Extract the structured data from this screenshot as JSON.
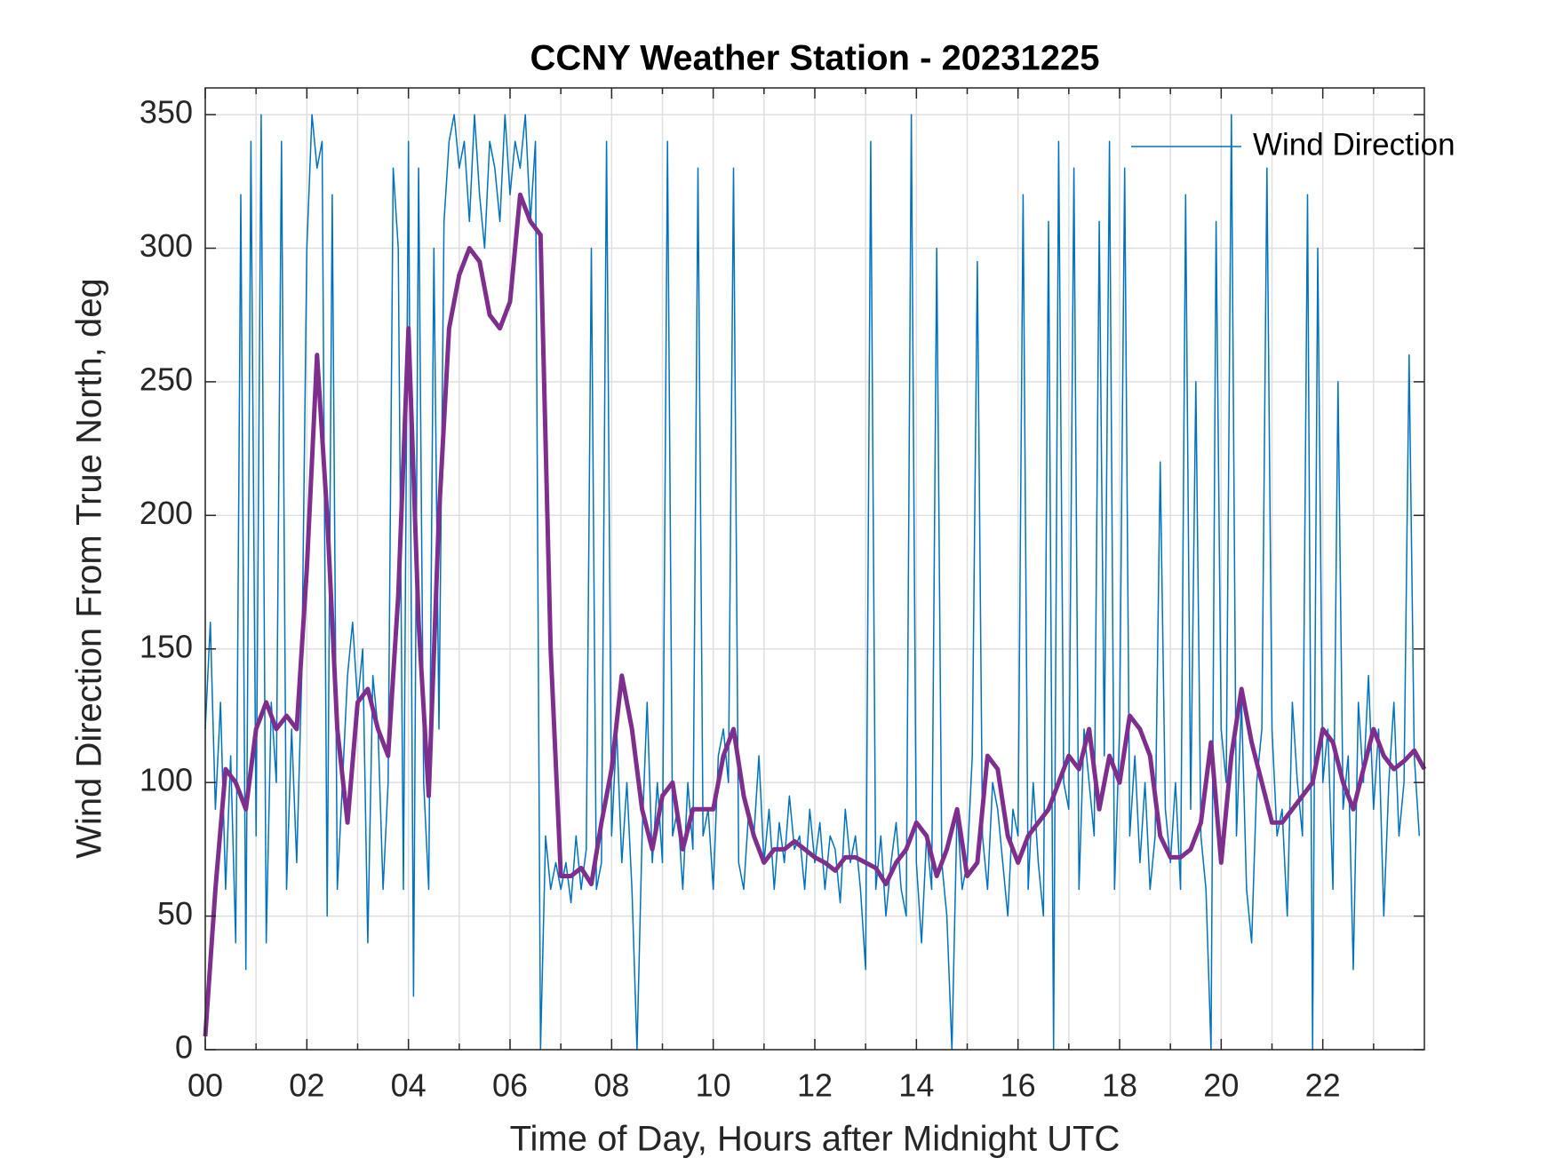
{
  "chart_data": {
    "type": "line",
    "title": "CCNY Weather Station - 20231225",
    "xlabel": "Time of Day, Hours after Midnight UTC",
    "ylabel": "Wind Direction From True North, deg",
    "xlim": [
      0,
      24
    ],
    "ylim": [
      0,
      360
    ],
    "xticks": [
      {
        "value": 0,
        "label": "00"
      },
      {
        "value": 2,
        "label": "02"
      },
      {
        "value": 4,
        "label": "04"
      },
      {
        "value": 6,
        "label": "06"
      },
      {
        "value": 8,
        "label": "08"
      },
      {
        "value": 10,
        "label": "10"
      },
      {
        "value": 12,
        "label": "12"
      },
      {
        "value": 14,
        "label": "14"
      },
      {
        "value": 16,
        "label": "16"
      },
      {
        "value": 18,
        "label": "18"
      },
      {
        "value": 20,
        "label": "20"
      },
      {
        "value": 22,
        "label": "22"
      }
    ],
    "xminorticks": [
      1,
      3,
      5,
      7,
      9,
      11,
      13,
      15,
      17,
      19,
      21,
      23
    ],
    "yticks": [
      0,
      50,
      100,
      150,
      200,
      250,
      300,
      350
    ],
    "grid": true,
    "legend": "northeast",
    "series": [
      {
        "name": "Wind Direction",
        "color": "#0072bd",
        "width": 1.5,
        "x": [
          0.0,
          0.1,
          0.2,
          0.3,
          0.4,
          0.5,
          0.6,
          0.7,
          0.8,
          0.9,
          1.0,
          1.1,
          1.2,
          1.3,
          1.4,
          1.5,
          1.6,
          1.7,
          1.8,
          1.9,
          2.0,
          2.1,
          2.2,
          2.3,
          2.4,
          2.5,
          2.6,
          2.7,
          2.8,
          2.9,
          3.0,
          3.1,
          3.2,
          3.3,
          3.4,
          3.5,
          3.6,
          3.7,
          3.8,
          3.9,
          4.0,
          4.1,
          4.2,
          4.3,
          4.4,
          4.5,
          4.6,
          4.7,
          4.8,
          4.9,
          5.0,
          5.1,
          5.2,
          5.3,
          5.4,
          5.5,
          5.6,
          5.7,
          5.8,
          5.9,
          6.0,
          6.1,
          6.2,
          6.3,
          6.4,
          6.5,
          6.6,
          6.7,
          6.8,
          6.9,
          7.0,
          7.1,
          7.2,
          7.3,
          7.4,
          7.5,
          7.6,
          7.7,
          7.8,
          7.9,
          8.0,
          8.1,
          8.2,
          8.3,
          8.4,
          8.5,
          8.6,
          8.7,
          8.8,
          8.9,
          9.0,
          9.1,
          9.2,
          9.3,
          9.4,
          9.5,
          9.6,
          9.7,
          9.8,
          9.9,
          10.0,
          10.1,
          10.2,
          10.3,
          10.4,
          10.5,
          10.6,
          10.7,
          10.8,
          10.9,
          11.0,
          11.1,
          11.2,
          11.3,
          11.4,
          11.5,
          11.6,
          11.7,
          11.8,
          11.9,
          12.0,
          12.1,
          12.2,
          12.3,
          12.4,
          12.5,
          12.6,
          12.7,
          12.8,
          12.9,
          13.0,
          13.1,
          13.2,
          13.3,
          13.4,
          13.5,
          13.6,
          13.7,
          13.8,
          13.9,
          14.0,
          14.1,
          14.2,
          14.3,
          14.4,
          14.5,
          14.6,
          14.7,
          14.8,
          14.9,
          15.0,
          15.1,
          15.2,
          15.3,
          15.4,
          15.5,
          15.6,
          15.7,
          15.8,
          15.9,
          16.0,
          16.1,
          16.2,
          16.3,
          16.4,
          16.5,
          16.6,
          16.7,
          16.8,
          16.9,
          17.0,
          17.1,
          17.2,
          17.3,
          17.4,
          17.5,
          17.6,
          17.7,
          17.8,
          17.9,
          18.0,
          18.1,
          18.2,
          18.3,
          18.4,
          18.5,
          18.6,
          18.7,
          18.8,
          18.9,
          19.0,
          19.1,
          19.2,
          19.3,
          19.4,
          19.5,
          19.6,
          19.7,
          19.8,
          19.9,
          20.0,
          20.1,
          20.2,
          20.3,
          20.4,
          20.5,
          20.6,
          20.7,
          20.8,
          20.9,
          21.0,
          21.1,
          21.2,
          21.3,
          21.4,
          21.5,
          21.6,
          21.7,
          21.8,
          21.9,
          22.0,
          22.1,
          22.2,
          22.3,
          22.4,
          22.5,
          22.6,
          22.7,
          22.8,
          22.9,
          23.0,
          23.1,
          23.2,
          23.3,
          23.4,
          23.5,
          23.6,
          23.7,
          23.8,
          23.9
        ],
        "values": [
          120,
          160,
          90,
          130,
          60,
          110,
          40,
          320,
          30,
          340,
          80,
          350,
          40,
          130,
          100,
          340,
          60,
          120,
          70,
          140,
          300,
          350,
          330,
          340,
          50,
          320,
          60,
          100,
          140,
          160,
          130,
          150,
          40,
          140,
          120,
          60,
          100,
          330,
          300,
          60,
          340,
          20,
          330,
          100,
          60,
          300,
          120,
          310,
          340,
          350,
          330,
          340,
          310,
          350,
          320,
          300,
          340,
          330,
          310,
          350,
          320,
          340,
          330,
          350,
          310,
          340,
          0,
          80,
          60,
          70,
          60,
          70,
          55,
          80,
          60,
          75,
          300,
          60,
          70,
          340,
          80,
          120,
          70,
          100,
          60,
          0,
          80,
          130,
          70,
          100,
          70,
          340,
          80,
          90,
          60,
          100,
          75,
          330,
          80,
          90,
          60,
          110,
          120,
          100,
          330,
          70,
          60,
          90,
          80,
          110,
          70,
          90,
          60,
          85,
          70,
          95,
          75,
          80,
          60,
          90,
          70,
          85,
          60,
          80,
          75,
          55,
          90,
          70,
          80,
          60,
          30,
          340,
          60,
          80,
          50,
          70,
          85,
          60,
          50,
          350,
          70,
          40,
          80,
          60,
          300,
          70,
          50,
          0,
          90,
          60,
          70,
          110,
          295,
          80,
          60,
          100,
          90,
          70,
          50,
          90,
          80,
          320,
          60,
          100,
          70,
          50,
          310,
          0,
          340,
          100,
          90,
          330,
          60,
          120,
          100,
          80,
          310,
          110,
          340,
          60,
          120,
          330,
          80,
          110,
          70,
          100,
          60,
          80,
          220,
          90,
          70,
          100,
          60,
          320,
          90,
          250,
          80,
          60,
          0,
          310,
          120,
          100,
          350,
          80,
          130,
          60,
          40,
          100,
          120,
          330,
          120,
          80,
          90,
          50,
          130,
          100,
          80,
          320,
          0,
          300,
          100,
          120,
          60,
          250,
          90,
          110,
          30,
          130,
          100,
          140,
          90,
          120,
          50,
          100,
          130,
          80,
          100,
          260,
          110,
          80
        ]
      },
      {
        "color": "#7e2f8e",
        "width": 5,
        "x": [
          0.0,
          0.2,
          0.4,
          0.6,
          0.8,
          1.0,
          1.2,
          1.4,
          1.6,
          1.8,
          2.0,
          2.2,
          2.4,
          2.6,
          2.8,
          3.0,
          3.2,
          3.4,
          3.6,
          3.8,
          4.0,
          4.2,
          4.4,
          4.6,
          4.8,
          5.0,
          5.2,
          5.4,
          5.6,
          5.8,
          6.0,
          6.2,
          6.4,
          6.6,
          6.8,
          7.0,
          7.2,
          7.4,
          7.6,
          7.8,
          8.0,
          8.2,
          8.4,
          8.6,
          8.8,
          9.0,
          9.2,
          9.4,
          9.6,
          9.8,
          10.0,
          10.2,
          10.4,
          10.6,
          10.8,
          11.0,
          11.2,
          11.4,
          11.6,
          11.8,
          12.0,
          12.2,
          12.4,
          12.6,
          12.8,
          13.0,
          13.2,
          13.4,
          13.6,
          13.8,
          14.0,
          14.2,
          14.4,
          14.6,
          14.8,
          15.0,
          15.2,
          15.4,
          15.6,
          15.8,
          16.0,
          16.2,
          16.4,
          16.6,
          16.8,
          17.0,
          17.2,
          17.4,
          17.6,
          17.8,
          18.0,
          18.2,
          18.4,
          18.6,
          18.8,
          19.0,
          19.2,
          19.4,
          19.6,
          19.8,
          20.0,
          20.2,
          20.4,
          20.6,
          20.8,
          21.0,
          21.2,
          21.4,
          21.6,
          21.8,
          22.0,
          22.2,
          22.4,
          22.6,
          22.8,
          23.0,
          23.2,
          23.4,
          23.6,
          23.8,
          24.0
        ],
        "values": [
          5,
          60,
          105,
          100,
          90,
          120,
          130,
          120,
          125,
          120,
          180,
          260,
          200,
          120,
          85,
          130,
          135,
          120,
          110,
          170,
          270,
          160,
          95,
          200,
          270,
          290,
          300,
          295,
          275,
          270,
          280,
          320,
          310,
          305,
          150,
          65,
          65,
          68,
          62,
          85,
          105,
          140,
          120,
          90,
          75,
          95,
          100,
          75,
          90,
          90,
          90,
          110,
          120,
          95,
          80,
          70,
          75,
          75,
          78,
          75,
          72,
          70,
          67,
          72,
          72,
          70,
          68,
          62,
          70,
          75,
          85,
          80,
          65,
          75,
          90,
          65,
          70,
          110,
          105,
          80,
          70,
          80,
          85,
          90,
          100,
          110,
          105,
          120,
          90,
          110,
          100,
          125,
          120,
          110,
          80,
          72,
          72,
          75,
          85,
          115,
          70,
          110,
          135,
          115,
          100,
          85,
          85,
          90,
          95,
          100,
          120,
          115,
          100,
          90,
          105,
          120,
          110,
          105,
          108,
          112,
          105
        ]
      }
    ]
  }
}
